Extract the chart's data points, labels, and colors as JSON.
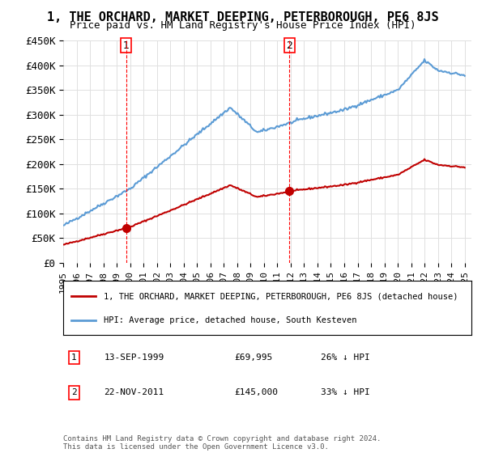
{
  "title": "1, THE ORCHARD, MARKET DEEPING, PETERBOROUGH, PE6 8JS",
  "subtitle": "Price paid vs. HM Land Registry's House Price Index (HPI)",
  "ylabel_ticks": [
    "£0",
    "£50K",
    "£100K",
    "£150K",
    "£200K",
    "£250K",
    "£300K",
    "£350K",
    "£400K",
    "£450K"
  ],
  "ylabel_values": [
    0,
    50000,
    100000,
    150000,
    200000,
    250000,
    300000,
    350000,
    400000,
    450000
  ],
  "ylim": [
    0,
    450000
  ],
  "xlim_start": 1995.0,
  "xlim_end": 2025.5,
  "hpi_color": "#5b9bd5",
  "price_color": "#c00000",
  "dashed_color": "#ff0000",
  "sale1_x": 1999.71,
  "sale1_y": 69995,
  "sale1_label": "1",
  "sale2_x": 2011.9,
  "sale2_y": 145000,
  "sale2_label": "2",
  "legend_line1": "1, THE ORCHARD, MARKET DEEPING, PETERBOROUGH, PE6 8JS (detached house)",
  "legend_line2": "HPI: Average price, detached house, South Kesteven",
  "annotation1": "1    13-SEP-1999         £69,995         26% ↓ HPI",
  "annotation2": "2    22-NOV-2011         £145,000       33% ↓ HPI",
  "footer": "Contains HM Land Registry data © Crown copyright and database right 2024.\nThis data is licensed under the Open Government Licence v3.0.",
  "background_color": "#ffffff",
  "grid_color": "#e0e0e0"
}
